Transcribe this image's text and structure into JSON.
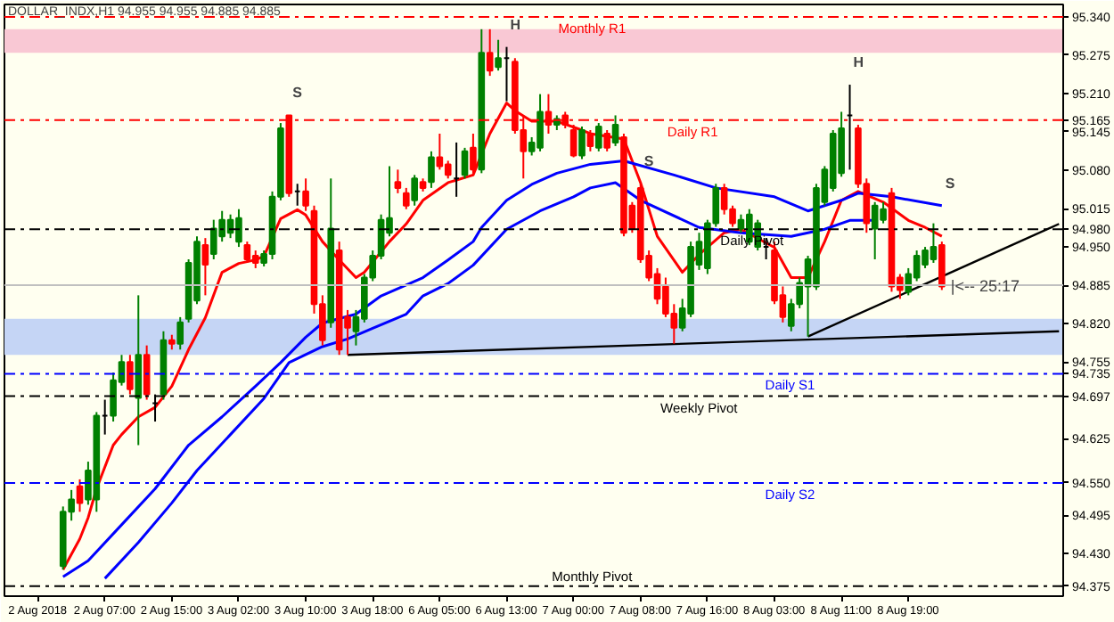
{
  "chart_data": {
    "type": "candlestick",
    "title": "DOLLAR_INDX,H1 94.955 94.955 94.885 94.885",
    "categories": [
      "2 Aug 2018",
      null,
      null,
      null,
      null,
      null,
      null,
      null,
      "2 Aug 07:00",
      null,
      null,
      null,
      null,
      null,
      null,
      null,
      "2 Aug 15:00",
      null,
      null,
      null,
      null,
      null,
      null,
      null,
      "3 Aug 02:00",
      null,
      null,
      null,
      null,
      null,
      null,
      null,
      "3 Aug 10:00",
      null,
      null,
      null,
      null,
      null,
      null,
      null,
      "3 Aug 18:00",
      null,
      null,
      null,
      null,
      null,
      null,
      null,
      "6 Aug 05:00",
      null,
      null,
      null,
      null,
      null,
      null,
      null,
      "6 Aug 13:00",
      null,
      null,
      null,
      null,
      null,
      null,
      null,
      "7 Aug 00:00",
      null,
      null,
      null,
      null,
      null,
      null,
      null,
      "7 Aug 08:00",
      null,
      null,
      null,
      null,
      null,
      null,
      null,
      "7 Aug 16:00",
      null,
      null,
      null,
      null,
      null,
      null,
      null,
      "8 Aug 03:00",
      null,
      null,
      null,
      null,
      null,
      null,
      null,
      "8 Aug 11:00",
      null,
      null,
      null,
      null,
      null,
      null,
      null,
      "8 Aug 19:00",
      null,
      null,
      null,
      null,
      null,
      null,
      null,
      null,
      null,
      null,
      null,
      null,
      null,
      null,
      null,
      null,
      null,
      null
    ],
    "ohlc": [
      null,
      null,
      null,
      [
        94.409,
        94.51,
        94.403,
        94.501
      ],
      [
        94.501,
        94.538,
        94.486,
        94.522
      ],
      [
        94.544,
        94.556,
        94.501,
        94.516
      ],
      [
        94.522,
        94.586,
        94.513,
        94.571
      ],
      [
        94.522,
        94.67,
        94.501,
        94.664
      ],
      [
        94.664,
        94.691,
        94.632,
        94.664
      ],
      [
        94.664,
        94.737,
        94.654,
        94.724
      ],
      [
        94.721,
        94.767,
        94.715,
        94.755
      ],
      [
        94.755,
        94.767,
        94.7,
        94.709
      ],
      [
        94.694,
        94.868,
        94.614,
        94.767
      ],
      [
        94.767,
        94.783,
        94.691,
        94.7
      ],
      [
        94.685,
        94.7,
        94.654,
        94.685
      ],
      [
        94.7,
        94.807,
        94.691,
        94.792
      ],
      [
        94.792,
        94.801,
        94.776,
        94.786
      ],
      [
        94.786,
        94.831,
        94.776,
        94.822
      ],
      [
        94.828,
        94.929,
        94.822,
        94.923
      ],
      [
        94.859,
        94.968,
        94.853,
        94.959
      ],
      [
        94.953,
        94.965,
        94.868,
        94.92
      ],
      [
        94.938,
        94.996,
        94.929,
        94.981
      ],
      [
        94.968,
        95.011,
        94.959,
        94.996
      ],
      [
        94.974,
        95.005,
        94.965,
        94.996
      ],
      [
        94.959,
        95.014,
        94.95,
        94.999
      ],
      [
        94.953,
        94.959,
        94.923,
        94.929
      ],
      [
        94.935,
        94.944,
        94.914,
        94.923
      ],
      [
        94.923,
        94.944,
        94.917,
        94.938
      ],
      [
        94.938,
        95.044,
        94.929,
        95.035
      ],
      [
        95.035,
        95.16,
        95.029,
        95.151
      ],
      [
        95.173,
        95.173,
        95.035,
        95.041
      ],
      [
        95.044,
        95.057,
        95.02,
        95.044
      ],
      [
        95.044,
        95.066,
        95.011,
        95.02
      ],
      [
        95.011,
        95.02,
        94.837,
        94.853
      ],
      [
        94.853,
        94.868,
        94.783,
        94.792
      ],
      [
        94.822,
        95.066,
        94.813,
        94.981
      ],
      [
        94.944,
        94.959,
        94.767,
        94.776
      ],
      [
        94.831,
        94.843,
        94.767,
        94.813
      ],
      [
        94.807,
        94.843,
        94.783,
        94.831
      ],
      [
        94.828,
        94.904,
        94.822,
        94.898
      ],
      [
        94.898,
        94.944,
        94.892,
        94.935
      ],
      [
        94.935,
        95.005,
        94.929,
        94.996
      ],
      [
        94.974,
        95.087,
        94.968,
        94.999
      ],
      [
        95.06,
        95.081,
        95.041,
        95.05
      ],
      [
        95.041,
        95.05,
        95.014,
        95.02
      ],
      [
        95.029,
        95.072,
        95.02,
        95.066
      ],
      [
        95.06,
        95.066,
        95.044,
        95.05
      ],
      [
        95.06,
        95.112,
        95.05,
        95.102
      ],
      [
        95.102,
        95.142,
        95.081,
        95.087
      ],
      [
        95.09,
        95.096,
        95.066,
        95.072
      ],
      [
        95.066,
        95.127,
        95.035,
        95.066
      ],
      [
        95.072,
        95.118,
        95.066,
        95.112
      ],
      [
        95.118,
        95.142,
        95.075,
        95.081
      ],
      [
        95.081,
        95.319,
        95.075,
        95.279
      ],
      [
        95.279,
        95.319,
        95.24,
        95.249
      ],
      [
        95.255,
        95.301,
        95.249,
        95.27
      ],
      [
        95.27,
        95.289,
        95.197,
        95.27
      ],
      [
        95.264,
        95.27,
        95.142,
        95.148
      ],
      [
        95.148,
        95.173,
        95.066,
        95.112
      ],
      [
        95.112,
        95.136,
        95.105,
        95.127
      ],
      [
        95.118,
        95.209,
        95.112,
        95.179
      ],
      [
        95.179,
        95.209,
        95.142,
        95.157
      ],
      [
        95.157,
        95.173,
        95.148,
        95.167
      ],
      [
        95.173,
        95.179,
        95.151,
        95.157
      ],
      [
        95.148,
        95.157,
        95.102,
        95.105
      ],
      [
        95.105,
        95.154,
        95.099,
        95.148
      ],
      [
        95.142,
        95.148,
        95.112,
        95.121
      ],
      [
        95.118,
        95.16,
        95.112,
        95.154
      ],
      [
        95.142,
        95.148,
        95.112,
        95.118
      ],
      [
        95.127,
        95.173,
        95.121,
        95.157
      ],
      [
        95.136,
        95.142,
        94.968,
        94.974
      ],
      [
        95.02,
        95.026,
        94.974,
        94.981
      ],
      [
        95.05,
        95.057,
        94.923,
        94.929
      ],
      [
        94.935,
        94.944,
        94.892,
        94.898
      ],
      [
        94.904,
        94.914,
        94.853,
        94.862
      ],
      [
        94.883,
        94.898,
        94.831,
        94.837
      ],
      [
        94.837,
        94.853,
        94.786,
        94.813
      ],
      [
        94.813,
        94.862,
        94.807,
        94.846
      ],
      [
        94.837,
        94.959,
        94.831,
        94.95
      ],
      [
        94.92,
        94.974,
        94.911,
        94.959
      ],
      [
        94.914,
        94.996,
        94.904,
        94.99
      ],
      [
        94.99,
        95.057,
        94.984,
        95.05
      ],
      [
        95.05,
        95.057,
        95.005,
        95.014
      ],
      [
        95.014,
        95.02,
        94.984,
        94.99
      ],
      [
        94.981,
        95.005,
        94.974,
        94.996
      ],
      [
        94.959,
        95.014,
        94.953,
        95.005
      ],
      [
        94.95,
        94.996,
        94.944,
        94.99
      ],
      [
        94.95,
        94.965,
        94.929,
        94.95
      ],
      [
        94.944,
        94.959,
        94.853,
        94.859
      ],
      [
        94.868,
        94.883,
        94.822,
        94.831
      ],
      [
        94.816,
        94.862,
        94.807,
        94.853
      ],
      [
        94.853,
        94.898,
        94.846,
        94.889
      ],
      [
        94.883,
        94.935,
        94.798,
        94.929
      ],
      [
        94.883,
        95.057,
        94.877,
        95.05
      ],
      [
        95.026,
        95.087,
        95.02,
        95.081
      ],
      [
        95.05,
        95.148,
        95.044,
        95.142
      ],
      [
        95.075,
        95.179,
        95.069,
        95.151
      ],
      [
        95.173,
        95.225,
        95.081,
        95.173
      ],
      [
        95.151,
        95.157,
        95.05,
        95.057
      ],
      [
        95.057,
        95.066,
        94.974,
        94.99
      ],
      [
        94.981,
        95.026,
        94.929,
        95.02
      ],
      [
        94.996,
        95.026,
        94.99,
        95.014
      ],
      [
        95.041,
        95.05,
        94.874,
        94.883
      ],
      [
        94.898,
        94.904,
        94.862,
        94.877
      ],
      [
        94.874,
        94.914,
        94.868,
        94.904
      ],
      [
        94.898,
        94.944,
        94.892,
        94.935
      ],
      [
        94.92,
        94.95,
        94.914,
        94.944
      ],
      [
        94.929,
        94.99,
        94.923,
        94.95
      ],
      [
        94.953,
        94.959,
        94.877,
        94.883
      ],
      null,
      null,
      null,
      null,
      null,
      null,
      null,
      null,
      null,
      null,
      null,
      null,
      null,
      null
    ],
    "series": [
      {
        "type": "line",
        "color": "#ff0000",
        "values": [
          null,
          null,
          null,
          94.403,
          null,
          94.455,
          94.491,
          94.54,
          null,
          94.614,
          94.632,
          null,
          94.662,
          null,
          94.678,
          null,
          94.714,
          null,
          94.776,
          null,
          94.83,
          null,
          94.907,
          null,
          94.922,
          null,
          94.928,
          94.934,
          null,
          94.998,
          null,
          95.013,
          95.004,
          null,
          94.959,
          null,
          94.928,
          null,
          94.898,
          94.907,
          null,
          null,
          94.959,
          null,
          94.989,
          null,
          95.029,
          null,
          null,
          95.059,
          null,
          null,
          95.072,
          null,
          95.142,
          null,
          95.194,
          95.181,
          null,
          95.163,
          null,
          null,
          95.163,
          null,
          null,
          95.148,
          95.142,
          null,
          null,
          null,
          95.133,
          null,
          95.059,
          null,
          94.968,
          null,
          null,
          94.907,
          null,
          94.937,
          null,
          null,
          94.974,
          null,
          94.98,
          null,
          null,
          null,
          94.949,
          null,
          94.898,
          null,
          94.898,
          null,
          94.959,
          null,
          95.029,
          null,
          95.044,
          null,
          null,
          95.026,
          null,
          null,
          94.995,
          null,
          94.983,
          null,
          94.968,
          null,
          null,
          null,
          null,
          null,
          null,
          null,
          null,
          null,
          null,
          null,
          null,
          null,
          null
        ]
      },
      {
        "type": "line",
        "color": "#0000ff",
        "values": [
          null,
          null,
          null,
          94.391,
          null,
          null,
          94.418,
          null,
          null,
          null,
          94.479,
          null,
          null,
          null,
          94.54,
          null,
          null,
          null,
          94.614,
          null,
          null,
          null,
          94.662,
          null,
          null,
          null,
          94.714,
          null,
          null,
          94.754,
          null,
          null,
          94.797,
          null,
          94.821,
          null,
          null,
          null,
          94.836,
          null,
          null,
          94.867,
          null,
          null,
          null,
          null,
          94.898,
          null,
          null,
          94.928,
          null,
          null,
          94.959,
          94.983,
          null,
          null,
          95.029,
          null,
          null,
          95.056,
          null,
          null,
          95.075,
          null,
          null,
          null,
          95.09,
          null,
          null,
          null,
          95.096,
          null,
          null,
          null,
          null,
          null,
          95.072,
          null,
          null,
          null,
          null,
          95.05,
          null,
          null,
          null,
          null,
          null,
          null,
          95.035,
          null,
          null,
          null,
          95.011,
          null,
          null,
          null,
          95.029,
          null,
          95.041,
          null,
          null,
          null,
          95.035,
          null,
          null,
          null,
          null,
          null,
          95.02,
          null,
          null,
          null,
          null,
          null,
          null,
          null,
          null,
          null,
          null,
          null,
          null,
          null,
          null
        ]
      },
      {
        "type": "line",
        "color": "#0000ff",
        "values": [
          null,
          null,
          null,
          null,
          null,
          null,
          null,
          null,
          94.388,
          null,
          null,
          null,
          94.449,
          null,
          null,
          null,
          94.516,
          null,
          null,
          94.571,
          null,
          null,
          null,
          94.632,
          null,
          null,
          null,
          94.693,
          null,
          null,
          94.754,
          null,
          null,
          null,
          94.781,
          null,
          null,
          94.794,
          null,
          null,
          94.812,
          null,
          null,
          null,
          94.836,
          null,
          94.867,
          null,
          null,
          94.888,
          null,
          null,
          94.919,
          null,
          null,
          null,
          94.98,
          null,
          null,
          null,
          95.011,
          null,
          null,
          null,
          95.035,
          null,
          95.05,
          null,
          null,
          95.059,
          null,
          null,
          95.029,
          null,
          null,
          null,
          null,
          null,
          null,
          94.983,
          null,
          null,
          null,
          null,
          94.974,
          null,
          null,
          null,
          null,
          null,
          94.968,
          null,
          null,
          null,
          94.98,
          null,
          null,
          94.995,
          null,
          null,
          94.995,
          null,
          null,
          null,
          null,
          null,
          null,
          null,
          null,
          null,
          null,
          null,
          null,
          null,
          null,
          null,
          null,
          null,
          null,
          null,
          null,
          null,
          null
        ]
      },
      {
        "type": "line",
        "color": "#000000",
        "values": [
          null,
          null,
          null,
          null,
          null,
          null,
          null,
          null,
          null,
          null,
          null,
          null,
          null,
          null,
          null,
          null,
          null,
          null,
          null,
          null,
          null,
          null,
          null,
          null,
          null,
          null,
          null,
          null,
          null,
          null,
          null,
          null,
          null,
          null,
          null,
          null,
          null,
          94.767,
          null,
          null,
          null,
          null,
          null,
          null,
          null,
          null,
          null,
          null,
          null,
          null,
          null,
          null,
          null,
          null,
          null,
          null,
          null,
          null,
          null,
          null,
          null,
          null,
          null,
          null,
          null,
          null,
          null,
          null,
          null,
          null,
          null,
          null,
          null,
          null,
          null,
          null,
          null,
          null,
          null,
          null,
          null,
          null,
          null,
          null,
          null,
          null,
          null,
          null,
          null,
          null,
          null,
          null,
          null,
          null,
          null,
          null,
          null,
          null,
          null,
          null,
          null,
          null,
          null,
          null,
          null,
          null,
          null,
          null,
          null,
          null,
          null,
          null,
          null,
          null,
          null,
          null,
          null,
          null,
          null,
          null,
          null,
          null,
          94.807
        ]
      },
      {
        "type": "line",
        "color": "#000000",
        "values": [
          null,
          null,
          null,
          null,
          null,
          null,
          null,
          null,
          null,
          null,
          null,
          null,
          null,
          null,
          null,
          null,
          null,
          null,
          null,
          null,
          null,
          null,
          null,
          null,
          null,
          null,
          null,
          null,
          null,
          null,
          null,
          null,
          null,
          null,
          null,
          null,
          null,
          null,
          null,
          null,
          null,
          null,
          null,
          null,
          null,
          null,
          null,
          null,
          null,
          null,
          null,
          null,
          null,
          null,
          null,
          null,
          null,
          null,
          null,
          null,
          null,
          null,
          null,
          null,
          null,
          null,
          null,
          null,
          null,
          null,
          null,
          null,
          null,
          null,
          null,
          null,
          null,
          null,
          null,
          null,
          null,
          null,
          null,
          null,
          null,
          null,
          null,
          null,
          null,
          null,
          null,
          null,
          94.798,
          null,
          null,
          null,
          null,
          null,
          null,
          null,
          null,
          null,
          null,
          null,
          null,
          null,
          null,
          null,
          null,
          null,
          null,
          null,
          null,
          null,
          null,
          null,
          null,
          null,
          null,
          null,
          null,
          null,
          94.989
        ]
      }
    ],
    "ylim": [
      94.358,
      95.361
    ],
    "yticks": [
      {
        "value": 95.34,
        "label": "95.340"
      },
      95.275,
      {
        "value": 95.21,
        "label": "95.210"
      },
      95.165,
      95.145,
      {
        "value": 95.08,
        "label": "95.080"
      },
      95.015,
      {
        "value": 94.98,
        "label": "94.980"
      },
      {
        "value": 94.95,
        "label": "94.950"
      },
      94.885,
      {
        "value": 94.82,
        "label": "94.820"
      },
      94.755,
      94.735,
      94.697,
      94.625,
      {
        "value": 94.55,
        "label": "94.550"
      },
      94.495,
      {
        "value": 94.43,
        "label": "94.430"
      },
      94.375
    ],
    "ref_lines": [
      {
        "axis": "y",
        "value": 95.34,
        "label": "Monthly R1",
        "color": "#ff0000",
        "line_style": "dashed"
      },
      {
        "axis": "y",
        "value": 95.165,
        "label": "Daily R1",
        "color": "#ff0000",
        "line_style": "dashed"
      },
      {
        "axis": "y",
        "value": 94.98,
        "label": "Daily Pivot",
        "color": "#000000",
        "line_style": "dashed"
      },
      {
        "axis": "y",
        "value": 94.885,
        "label": null,
        "color": "#c0c0c0",
        "line_style": "solid"
      },
      {
        "axis": "y",
        "value": 94.735,
        "label": "Daily S1",
        "color": "#0000ff",
        "line_style": "dashed"
      },
      {
        "axis": "y",
        "value": 94.697,
        "label": "Weekly Pivot",
        "color": "#000000",
        "line_style": "dashed"
      },
      {
        "axis": "y",
        "value": 94.55,
        "label": "Daily S2",
        "color": "#0000ff",
        "line_style": "dashed"
      },
      {
        "axis": "y",
        "value": 94.375,
        "label": "Monthly Pivot",
        "color": "#000000",
        "line_style": "dashed"
      }
    ],
    "bands": [
      {
        "axis": "y",
        "from": 95.279,
        "to": 95.319,
        "color": "#f9c8d4"
      },
      {
        "axis": "y",
        "from": 94.767,
        "to": 94.828,
        "color": "#c5d5f5"
      }
    ],
    "annotations": [
      {
        "text": "S",
        "y": 95.173
      },
      {
        "text": "H",
        "y": 95.289
      },
      {
        "text": "S",
        "y": 95.057
      },
      {
        "text": "H",
        "y": 95.225
      },
      {
        "text": "S",
        "y": 95.02
      },
      "|<-- 25:17"
    ],
    "grid": false
  }
}
